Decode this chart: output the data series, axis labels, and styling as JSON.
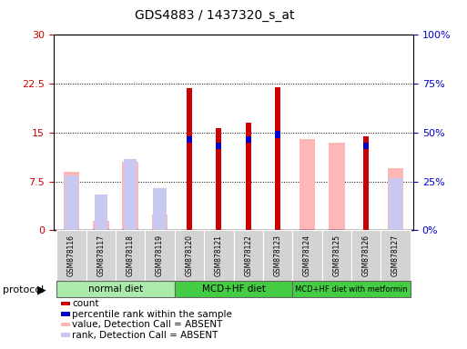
{
  "title": "GDS4883 / 1437320_s_at",
  "samples": [
    "GSM878116",
    "GSM878117",
    "GSM878118",
    "GSM878119",
    "GSM878120",
    "GSM878121",
    "GSM878122",
    "GSM878123",
    "GSM878124",
    "GSM878125",
    "GSM878126",
    "GSM878127"
  ],
  "count": [
    0,
    0,
    0,
    0,
    21.8,
    15.7,
    16.5,
    21.9,
    0,
    0,
    14.5,
    0
  ],
  "percentile_val": [
    0,
    0,
    0,
    0,
    14.5,
    13.5,
    14.5,
    15.2,
    0,
    0,
    13.5,
    0
  ],
  "value_absent": [
    9.0,
    1.5,
    10.5,
    2.5,
    0,
    0,
    0,
    0,
    14.0,
    13.5,
    0,
    9.5
  ],
  "rank_absent": [
    8.5,
    5.5,
    11.0,
    6.5,
    0,
    0,
    0,
    0,
    0,
    0,
    0,
    8.0
  ],
  "left_ylim": [
    0,
    30
  ],
  "right_ylim": [
    0,
    100
  ],
  "left_yticks": [
    0,
    7.5,
    15,
    22.5,
    30
  ],
  "right_yticks": [
    0,
    25,
    50,
    75,
    100
  ],
  "left_ytick_labels": [
    "0",
    "7.5",
    "15",
    "22.5",
    "30"
  ],
  "right_ytick_labels": [
    "0%",
    "25%",
    "50%",
    "75%",
    "100%"
  ],
  "color_count": "#cc0000",
  "color_percentile": "#0000cc",
  "color_value_absent": "#ffb6b6",
  "color_rank_absent": "#c8c8f0",
  "left_axis_color": "#cc0000",
  "right_axis_color": "#0000cc",
  "protocol_normal_color": "#aaeaaa",
  "protocol_mcd_color": "#44cc44",
  "protocol_metformin_color": "#44cc44",
  "figsize": [
    5.13,
    3.84
  ],
  "dpi": 100
}
